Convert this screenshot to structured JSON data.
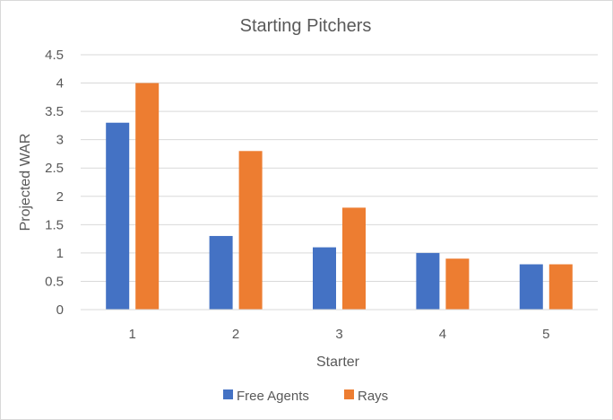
{
  "chart_data": {
    "type": "bar",
    "title": "Starting Pitchers",
    "xlabel": "Starter",
    "ylabel": "Projected WAR",
    "categories": [
      "1",
      "2",
      "3",
      "4",
      "5"
    ],
    "series": [
      {
        "name": "Free Agents",
        "values": [
          3.3,
          1.3,
          1.1,
          1.0,
          0.8
        ],
        "color": "#4472c4"
      },
      {
        "name": "Rays",
        "values": [
          4.0,
          2.8,
          1.8,
          0.9,
          0.8
        ],
        "color": "#ed7d31"
      }
    ],
    "ylim": [
      0,
      4.5
    ],
    "yticks": [
      "0",
      "0.5",
      "1",
      "1.5",
      "2",
      "2.5",
      "3",
      "3.5",
      "4",
      "4.5"
    ],
    "grid": true,
    "legend_position": "bottom"
  }
}
